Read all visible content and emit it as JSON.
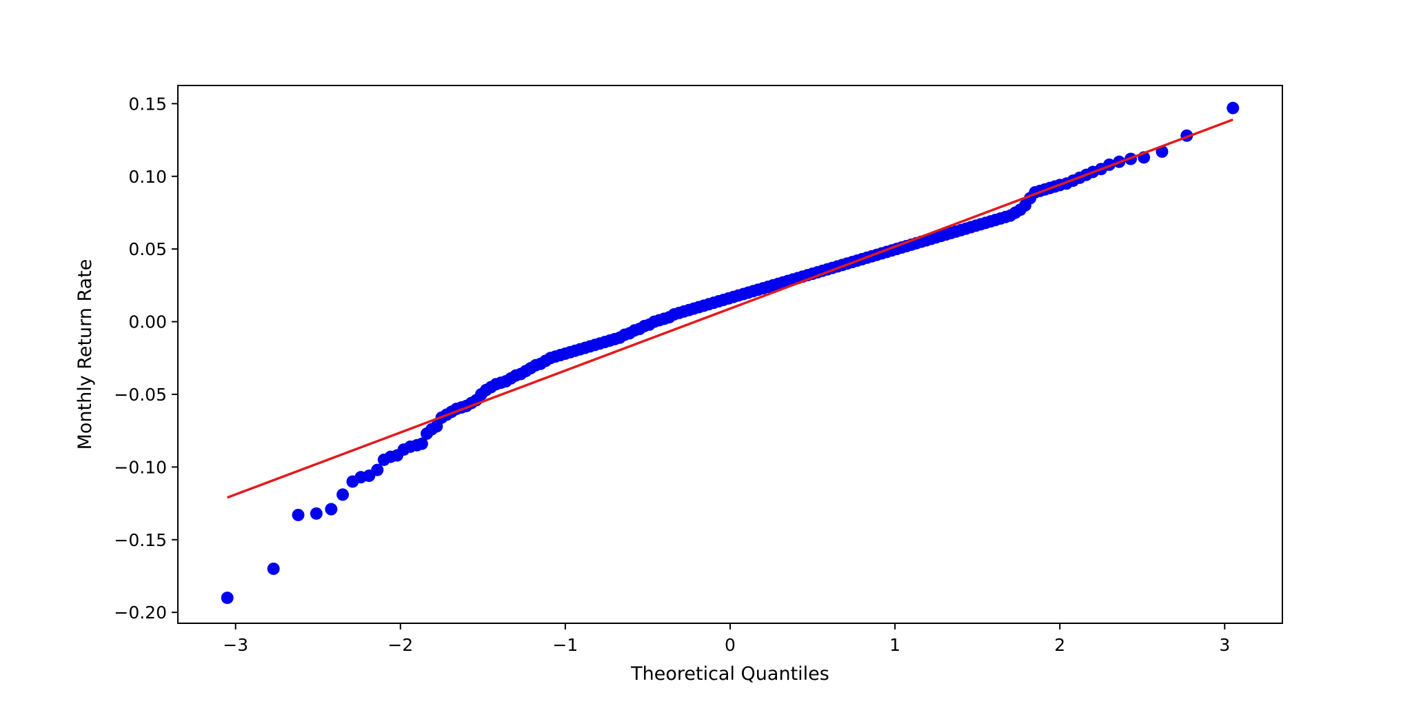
{
  "chart_data": {
    "type": "scatter",
    "title": "",
    "xlabel": "Theoretical Quantiles",
    "ylabel": "Monthly Return Rate",
    "xlim": [
      -3.35,
      3.35
    ],
    "ylim": [
      -0.2075,
      0.1625
    ],
    "x_ticks": [
      -3,
      -2,
      -1,
      0,
      1,
      2,
      3
    ],
    "x_tick_labels": [
      "−3",
      "−2",
      "−1",
      "0",
      "1",
      "2",
      "3"
    ],
    "y_ticks": [
      -0.2,
      -0.15,
      -0.1,
      -0.05,
      0.0,
      0.05,
      0.1,
      0.15
    ],
    "y_tick_labels": [
      "−0.20",
      "−0.15",
      "−0.10",
      "−0.05",
      "0.00",
      "0.05",
      "0.10",
      "0.15"
    ],
    "grid": false,
    "legend": "none",
    "colors": {
      "points": "#0000ee",
      "line": "#e31a1c"
    },
    "series": [
      {
        "type": "scatter",
        "x": [
          -3.05,
          -2.77,
          -2.62,
          -2.51,
          -2.42,
          -2.35,
          -2.29,
          -2.24,
          -2.19,
          -2.14,
          -2.1,
          -2.06,
          -2.02,
          -1.98,
          -1.94,
          -1.9,
          -1.87,
          -1.84,
          -1.81,
          -1.78,
          -1.75,
          -1.72,
          -1.69,
          -1.66,
          -1.63,
          -1.6,
          -1.57,
          -1.54,
          -1.51,
          -1.48,
          -1.45,
          -1.42,
          -1.39,
          -1.36,
          -1.33,
          -1.3,
          -1.27,
          -1.24,
          -1.21,
          -1.18,
          -1.15,
          -1.12,
          -1.09,
          -1.06,
          -1.03,
          -1.0,
          -0.97,
          -0.94,
          -0.91,
          -0.88,
          -0.85,
          -0.82,
          -0.79,
          -0.76,
          -0.73,
          -0.7,
          -0.67,
          -0.64,
          -0.61,
          -0.58,
          -0.55,
          -0.52,
          -0.49,
          -0.46,
          -0.43,
          -0.4,
          -0.37,
          -0.34,
          -0.31,
          -0.28,
          -0.25,
          -0.22,
          -0.19,
          -0.16,
          -0.13,
          -0.1,
          -0.07,
          -0.04,
          -0.01,
          0.02,
          0.05,
          0.08,
          0.11,
          0.14,
          0.17,
          0.2,
          0.23,
          0.26,
          0.29,
          0.32,
          0.35,
          0.38,
          0.41,
          0.44,
          0.47,
          0.5,
          0.53,
          0.56,
          0.59,
          0.62,
          0.65,
          0.68,
          0.71,
          0.74,
          0.77,
          0.8,
          0.83,
          0.86,
          0.89,
          0.92,
          0.95,
          0.98,
          1.01,
          1.04,
          1.07,
          1.1,
          1.13,
          1.16,
          1.19,
          1.22,
          1.25,
          1.28,
          1.31,
          1.34,
          1.37,
          1.4,
          1.43,
          1.46,
          1.49,
          1.52,
          1.55,
          1.58,
          1.61,
          1.64,
          1.67,
          1.7,
          1.73,
          1.76,
          1.79,
          1.82,
          1.85,
          1.88,
          1.91,
          1.94,
          1.97,
          2.0,
          2.04,
          2.08,
          2.12,
          2.16,
          2.2,
          2.25,
          2.3,
          2.36,
          2.43,
          2.51,
          2.62,
          2.77,
          3.05
        ],
        "y": [
          -0.19,
          -0.17,
          -0.133,
          -0.132,
          -0.129,
          -0.119,
          -0.11,
          -0.107,
          -0.106,
          -0.102,
          -0.095,
          -0.093,
          -0.092,
          -0.088,
          -0.086,
          -0.085,
          -0.084,
          -0.077,
          -0.074,
          -0.072,
          -0.066,
          -0.064,
          -0.062,
          -0.06,
          -0.059,
          -0.058,
          -0.056,
          -0.054,
          -0.05,
          -0.047,
          -0.045,
          -0.043,
          -0.042,
          -0.041,
          -0.039,
          -0.037,
          -0.036,
          -0.034,
          -0.032,
          -0.03,
          -0.029,
          -0.027,
          -0.025,
          -0.024,
          -0.023,
          -0.022,
          -0.021,
          -0.02,
          -0.019,
          -0.018,
          -0.017,
          -0.016,
          -0.015,
          -0.014,
          -0.013,
          -0.012,
          -0.011,
          -0.009,
          -0.008,
          -0.006,
          -0.005,
          -0.003,
          -0.002,
          0.0,
          0.001,
          0.002,
          0.003,
          0.005,
          0.006,
          0.007,
          0.008,
          0.009,
          0.01,
          0.011,
          0.012,
          0.013,
          0.014,
          0.015,
          0.016,
          0.017,
          0.018,
          0.019,
          0.02,
          0.021,
          0.022,
          0.023,
          0.024,
          0.025,
          0.026,
          0.027,
          0.028,
          0.029,
          0.03,
          0.031,
          0.032,
          0.033,
          0.034,
          0.035,
          0.036,
          0.037,
          0.038,
          0.039,
          0.04,
          0.041,
          0.042,
          0.043,
          0.044,
          0.045,
          0.046,
          0.047,
          0.048,
          0.049,
          0.05,
          0.051,
          0.052,
          0.053,
          0.054,
          0.055,
          0.056,
          0.057,
          0.058,
          0.059,
          0.06,
          0.061,
          0.062,
          0.063,
          0.064,
          0.065,
          0.066,
          0.067,
          0.068,
          0.069,
          0.07,
          0.071,
          0.072,
          0.073,
          0.075,
          0.077,
          0.08,
          0.085,
          0.089,
          0.09,
          0.091,
          0.092,
          0.093,
          0.094,
          0.095,
          0.097,
          0.099,
          0.101,
          0.103,
          0.105,
          0.108,
          0.11,
          0.112,
          0.113,
          0.117,
          0.128,
          0.147
        ]
      },
      {
        "type": "line",
        "x": [
          -3.05,
          3.05
        ],
        "y": [
          -0.121,
          0.139
        ]
      }
    ]
  }
}
